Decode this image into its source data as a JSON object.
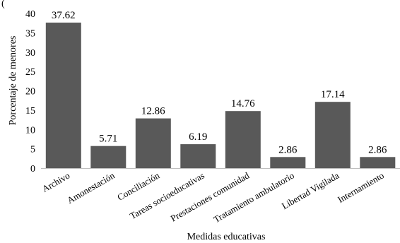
{
  "chart_data": {
    "type": "bar",
    "categories": [
      "Archivo",
      "Amonestación",
      "Conciliación",
      "Tareas socioeducativas",
      "Prestaciones comunidad",
      "Tratamiento ambulatorio",
      "Libertad Vigilada",
      "Internamiento"
    ],
    "values": [
      37.62,
      5.71,
      12.86,
      6.19,
      14.76,
      2.86,
      17.14,
      2.86
    ],
    "data_labels": [
      "37.62",
      "5.71",
      "12.86",
      "6.19",
      "14.76",
      "2.86",
      "17.14",
      "2.86"
    ],
    "xlabel": "Medidas educativas",
    "ylabel": "Porcentaje de menores",
    "ylim": [
      0,
      40
    ],
    "yticks": [
      0,
      5,
      10,
      15,
      20,
      25,
      30,
      35,
      40
    ],
    "top_fragment": "(",
    "grid": false,
    "legend": "none",
    "bar_color": "#595959"
  }
}
